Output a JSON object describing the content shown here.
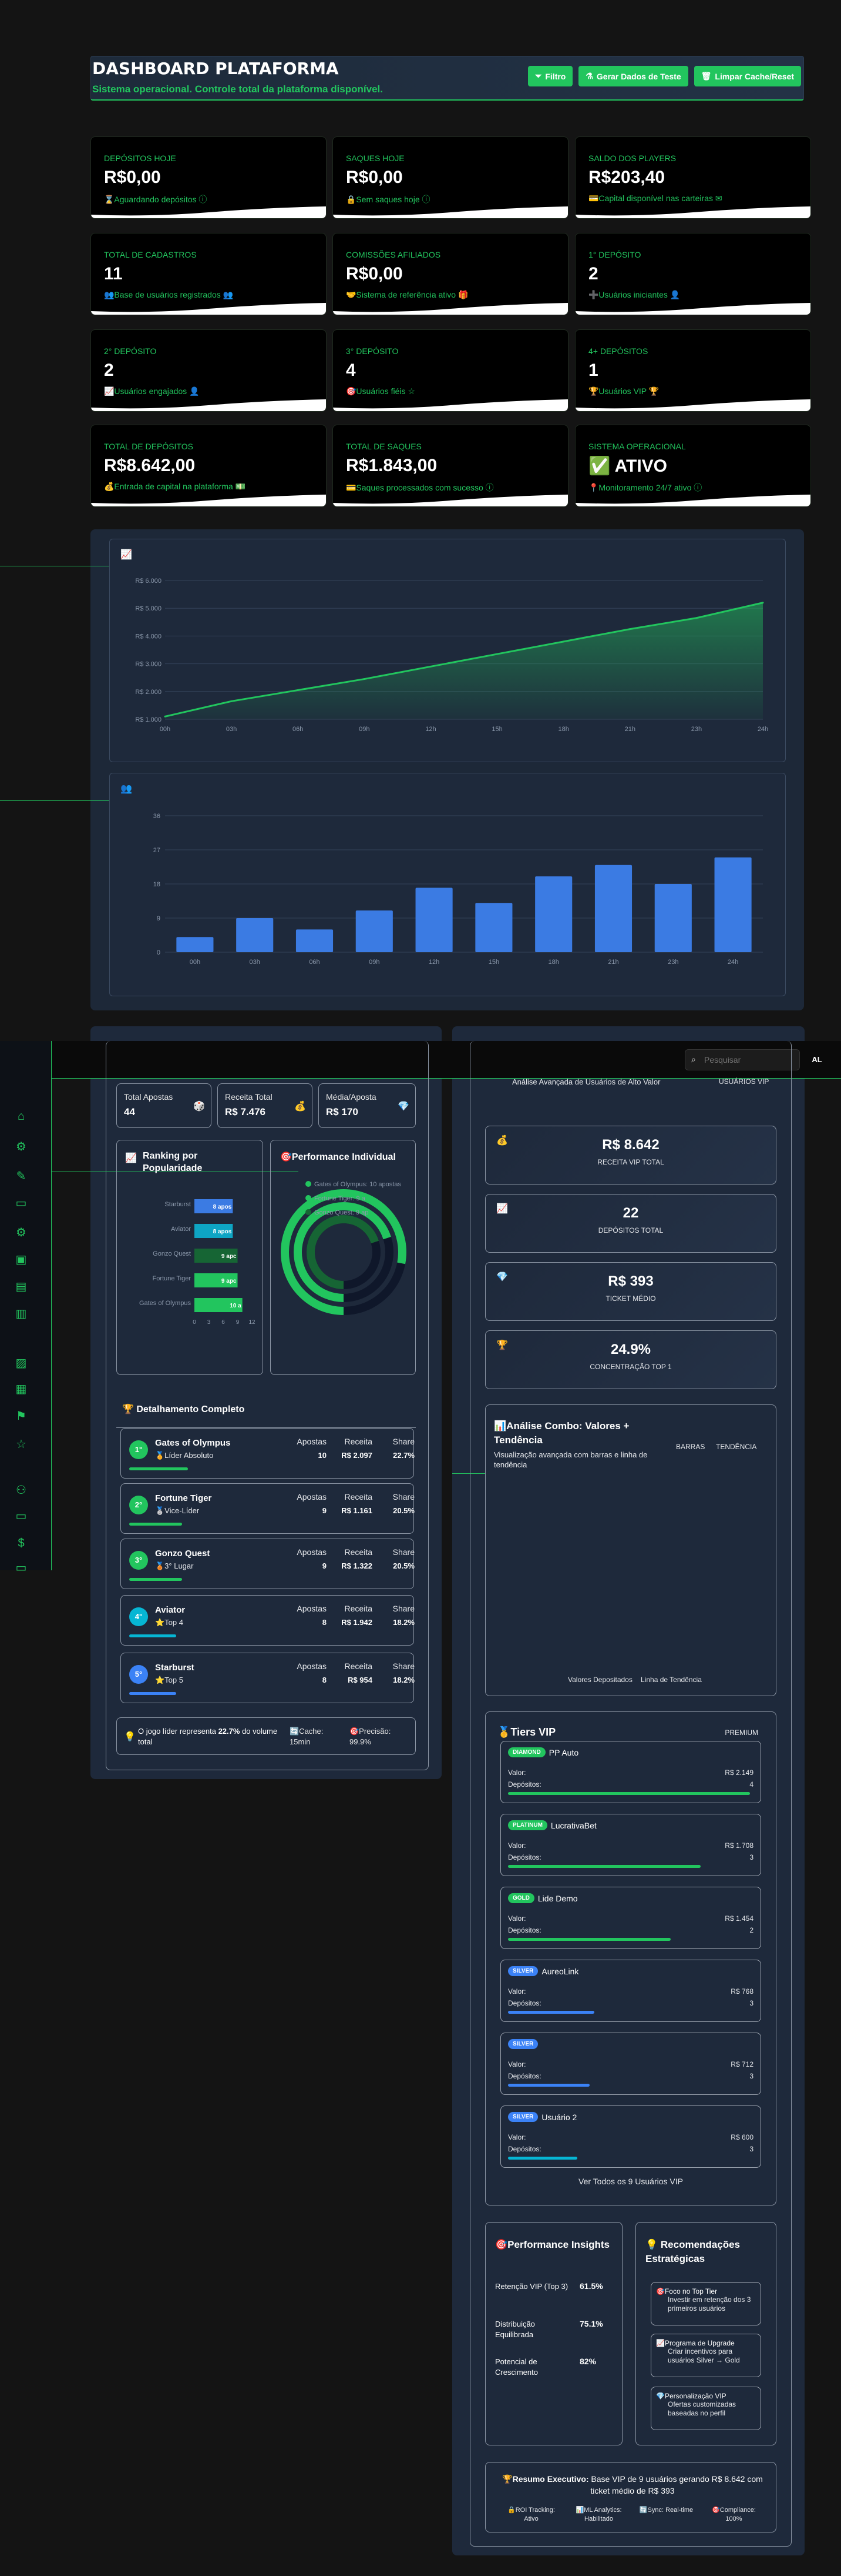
{
  "header": {
    "title": "DASHBOARD PLATAFORMA",
    "subtitle": "Sistema operacional. Controle total da plataforma disponível.",
    "btn_filter": "Filtro",
    "btn_test": "Gerar Dados de Teste",
    "btn_clear": "Limpar Cache/Reset"
  },
  "cards": [
    {
      "label": "DEPÓSITOS HOJE",
      "value": "R$0,00",
      "desc": "⌛Aguardando depósitos ⓘ"
    },
    {
      "label": "SAQUES HOJE",
      "value": "R$0,00",
      "desc": "🔒Sem saques hoje ⓘ"
    },
    {
      "label": "SALDO DOS PLAYERS",
      "value": "R$203,40",
      "desc": "💳Capital disponível nas carteiras ✉"
    },
    {
      "label": "TOTAL DE CADASTROS",
      "value": "11",
      "desc": "👥Base de usuários registrados 👥"
    },
    {
      "label": "COMISSÕES AFILIADOS",
      "value": "R$0,00",
      "desc": "🤝Sistema de referência ativo 🎁"
    },
    {
      "label": "1° DEPÓSITO",
      "value": "2",
      "desc": "➕Usuários iniciantes 👤"
    },
    {
      "label": "2° DEPÓSITO",
      "value": "2",
      "desc": "📈Usuários engajados 👤"
    },
    {
      "label": "3° DEPÓSITO",
      "value": "4",
      "desc": "🎯Usuários fiéis ☆"
    },
    {
      "label": "4+ DEPÓSITOS",
      "value": "1",
      "desc": "🏆Usuários VIP 🏆"
    },
    {
      "label": "TOTAL DE DEPÓSITOS",
      "value": "R$8.642,00",
      "desc": "💰Entrada de capital na plataforma 💵"
    },
    {
      "label": "TOTAL DE SAQUES",
      "value": "R$1.843,00",
      "desc": "💳Saques processados com sucesso ⓘ"
    },
    {
      "label": "SISTEMA OPERACIONAL",
      "value": "✅ ATIVO",
      "desc": "📍Monitoramento 24/7 ativo ⓘ"
    }
  ],
  "line_icon": "📈",
  "bar_icon": "👥",
  "chart_data": [
    {
      "type": "line",
      "x": [
        "00h",
        "03h",
        "06h",
        "09h",
        "12h",
        "15h",
        "18h",
        "21h",
        "23h",
        "24h"
      ],
      "y": [
        1100,
        1650,
        2050,
        2450,
        2900,
        3350,
        3800,
        4250,
        4650,
        5200
      ],
      "ylim": [
        1000,
        6000
      ],
      "yticks": [
        "R$ 1.000",
        "R$ 2.000",
        "R$ 3.000",
        "R$ 4.000",
        "R$ 5.000",
        "R$ 6.000"
      ]
    },
    {
      "type": "bar",
      "categories": [
        "00h",
        "03h",
        "06h",
        "09h",
        "12h",
        "15h",
        "18h",
        "21h",
        "23h",
        "24h"
      ],
      "values": [
        4,
        9,
        6,
        11,
        17,
        13,
        20,
        23,
        18,
        25
      ],
      "ylim": [
        0,
        36
      ],
      "yticks": [
        "0",
        "9",
        "18",
        "27",
        "36"
      ]
    }
  ],
  "topbar": {
    "search_placeholder": "Pesquisar",
    "avatar": "AL"
  },
  "left": {
    "total_apostas_label": "Total Apostas",
    "total_apostas": "44",
    "receita_label": "Receita Total",
    "receita": "R$ 7.476",
    "media_label": "Média/Aposta",
    "media": "R$ 170",
    "ranking_title": "Ranking por Popularidade",
    "perf_title": "Performance Individual",
    "rank_bars": [
      {
        "name": "Starburst",
        "label": "8 apos",
        "value": 8
      },
      {
        "name": "Aviator",
        "label": "8 apos",
        "value": 8
      },
      {
        "name": "Gonzo Quest",
        "label": "9 apc",
        "value": 9
      },
      {
        "name": "Fortune Tiger",
        "label": "9 apc",
        "value": 9
      },
      {
        "name": "Gates of Olympus",
        "label": "10 a",
        "value": 10
      }
    ],
    "rank_ticks": [
      "0",
      "3",
      "6",
      "9",
      "12"
    ],
    "perf_legend": [
      "Gates of Olympus: 10 apostas",
      "Fortune Tiger: 9 a",
      "Gonzo Quest: 9 ap"
    ],
    "detail_title": "🏆 Detalhamento Completo",
    "games": [
      {
        "rank": "1°",
        "name": "Gates of Olympus",
        "sub": "🏅Líder Absoluto",
        "apostas": "10",
        "receita": "R$ 2.097",
        "share": "22.7%",
        "share_value": 22.7,
        "color": "#22c55e"
      },
      {
        "rank": "2°",
        "name": "Fortune Tiger",
        "sub": "🥈Vice-Líder",
        "apostas": "9",
        "receita": "R$ 1.161",
        "share": "20.5%",
        "share_value": 20.5,
        "color": "#22c55e"
      },
      {
        "rank": "3°",
        "name": "Gonzo Quest",
        "sub": "🥉3° Lugar",
        "apostas": "9",
        "receita": "R$ 1.322",
        "share": "20.5%",
        "share_value": 20.5,
        "color": "#22c55e"
      },
      {
        "rank": "4°",
        "name": "Aviator",
        "sub": "⭐Top 4",
        "apostas": "8",
        "receita": "R$ 1.942",
        "share": "18.2%",
        "share_value": 18.2,
        "color": "#06b6d4"
      },
      {
        "rank": "5°",
        "name": "Starburst",
        "sub": "⭐Top 5",
        "apostas": "8",
        "receita": "R$ 954",
        "share": "18.2%",
        "share_value": 18.2,
        "color": "#3b82f6"
      }
    ],
    "col_apostas": "Apostas",
    "col_receita": "Receita",
    "col_share": "Share",
    "footer_text1": "O jogo líder representa ",
    "footer_bold": "22.7%",
    "footer_text2": " do volume total",
    "cache": "🔄Cache: 15min",
    "precisao": "🎯Precisão: 99.9%"
  },
  "right": {
    "vip_subtitle": "Análise Avançada de Usuários de Alto Valor",
    "vip_badge": "USUÁRIOS VIP",
    "stats": [
      {
        "icon": "💰",
        "value": "R$ 8.642",
        "label": "RECEITA VIP TOTAL"
      },
      {
        "icon": "📈",
        "value": "22",
        "label": "DEPÓSITOS TOTAL"
      },
      {
        "icon": "💎",
        "value": "R$ 393",
        "label": "TICKET MÉDIO"
      },
      {
        "icon": "🏆",
        "value": "24.9%",
        "label": "CONCENTRAÇÃO TOP 1"
      }
    ],
    "combo_title": "📊Análise Combo: Valores + Tendência",
    "combo_sub": "Visualização avançada com barras e linha de tendência",
    "combo_tab1": "BARRAS",
    "combo_tab2": "TENDÊNCIA",
    "combo_legend1": "Valores Depositados",
    "combo_legend2": "Linha de Tendência",
    "tiers_title": "🥇Tiers VIP",
    "tiers_badge": "PREMIUM",
    "tiers": [
      {
        "badge": "DIAMOND",
        "name": "PP Auto",
        "valor": "R$ 2.149",
        "depositos": "4",
        "fill": 0.98,
        "color": "#22c55e"
      },
      {
        "badge": "PLATINUM",
        "name": "LucrativaBet",
        "valor": "R$ 1.708",
        "depositos": "3",
        "fill": 0.78,
        "color": "#22c55e"
      },
      {
        "badge": "GOLD",
        "name": "Lide Demo",
        "valor": "R$ 1.454",
        "depositos": "2",
        "fill": 0.66,
        "color": "#22c55e"
      },
      {
        "badge": "SILVER",
        "name": "AureoLink",
        "valor": "R$ 768",
        "depositos": "3",
        "fill": 0.35,
        "color": "#3b82f6"
      },
      {
        "badge": "SILVER",
        "name": "",
        "valor": "R$ 712",
        "depositos": "3",
        "fill": 0.33,
        "color": "#3b82f6"
      },
      {
        "badge": "SILVER",
        "name": "Usuário 2",
        "valor": "R$ 600",
        "depositos": "3",
        "fill": 0.28,
        "color": "#06b6d4"
      }
    ],
    "valor_label": "Valor:",
    "dep_label": "Depósitos:",
    "ver_todos": "Ver Todos os 9 Usuários VIP",
    "insights_title": "🎯Performance Insights",
    "insights": [
      {
        "label": "Retenção VIP (Top 3)",
        "value": "61.5%"
      },
      {
        "label": "Distribuição Equilibrada",
        "value": "75.1%"
      },
      {
        "label": "Potencial de Crescimento",
        "value": "82%"
      }
    ],
    "recs_title": "💡 Recomendações Estratégicas",
    "recs": [
      {
        "title": "🎯Foco no Top Tier",
        "text": "Investir em retenção dos 3 primeiros usuários"
      },
      {
        "title": "📈Programa de Upgrade",
        "text": "Criar incentivos para usuários Silver → Gold"
      },
      {
        "title": "💎Personalização VIP",
        "text": "Ofertas customizadas baseadas no perfil"
      }
    ],
    "resumo_bold": "🏆Resumo Executivo:",
    "resumo_text": " Base VIP de 9 usuários gerando R$ 8.642 com ticket médio de R$ 393",
    "footer_items": [
      "🔒ROI Tracking: Ativo",
      "📊ML Analytics: Habilitado",
      "🔄Sync: Real-time",
      "🎯Compliance: 100%"
    ]
  }
}
